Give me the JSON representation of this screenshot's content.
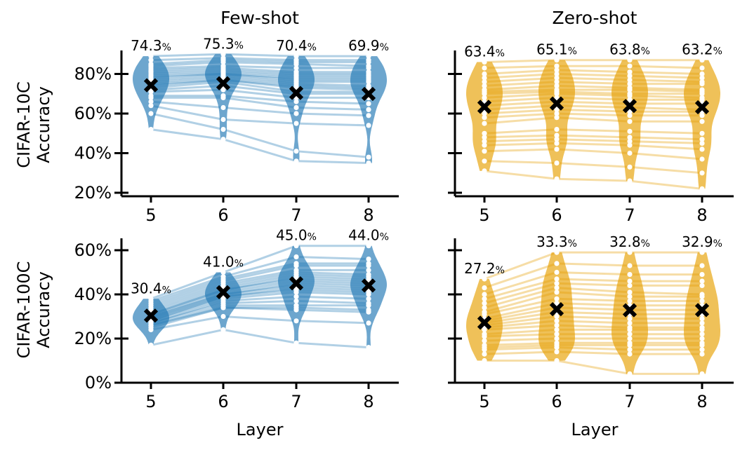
{
  "chart_data": {
    "type": "violin",
    "columns": [
      "Few-shot",
      "Zero-shot"
    ],
    "rows": [
      "CIFAR-10C\nAccuracy",
      "CIFAR-100C\nAccuracy"
    ],
    "xlabel": "Layer",
    "layers": [
      "5",
      "6",
      "7",
      "8"
    ],
    "colors": {
      "few_shot": "#1f77b4",
      "zero_shot": "#e69f00"
    },
    "panels": [
      {
        "row": "CIFAR-10C",
        "column": "Few-shot",
        "ylim": [
          0.19,
          0.92
        ],
        "yticks": [
          0.2,
          0.4,
          0.6,
          0.8
        ],
        "ytick_labels": [
          "20%",
          "40%",
          "60%",
          "80%"
        ],
        "mean_labels": [
          "74.3",
          "75.3",
          "70.4",
          "69.9"
        ],
        "mean_values": [
          0.743,
          0.753,
          0.704,
          0.699
        ],
        "traces": [
          [
            0.89,
            0.9,
            0.89,
            0.89
          ],
          [
            0.87,
            0.88,
            0.87,
            0.87
          ],
          [
            0.85,
            0.87,
            0.86,
            0.86
          ],
          [
            0.84,
            0.86,
            0.85,
            0.84
          ],
          [
            0.83,
            0.84,
            0.83,
            0.83
          ],
          [
            0.82,
            0.83,
            0.81,
            0.81
          ],
          [
            0.81,
            0.82,
            0.8,
            0.8
          ],
          [
            0.8,
            0.81,
            0.79,
            0.79
          ],
          [
            0.79,
            0.8,
            0.78,
            0.78
          ],
          [
            0.78,
            0.8,
            0.77,
            0.77
          ],
          [
            0.77,
            0.79,
            0.76,
            0.76
          ],
          [
            0.76,
            0.78,
            0.75,
            0.74
          ],
          [
            0.75,
            0.77,
            0.74,
            0.73
          ],
          [
            0.74,
            0.77,
            0.73,
            0.72
          ],
          [
            0.73,
            0.76,
            0.71,
            0.71
          ],
          [
            0.72,
            0.74,
            0.7,
            0.7
          ],
          [
            0.71,
            0.72,
            0.68,
            0.68
          ],
          [
            0.69,
            0.69,
            0.66,
            0.65
          ],
          [
            0.68,
            0.68,
            0.63,
            0.62
          ],
          [
            0.66,
            0.63,
            0.6,
            0.59
          ],
          [
            0.64,
            0.57,
            0.55,
            0.54
          ],
          [
            0.6,
            0.52,
            0.41,
            0.38
          ],
          [
            0.52,
            0.47,
            0.36,
            0.35
          ]
        ]
      },
      {
        "row": "CIFAR-10C",
        "column": "Zero-shot",
        "ylim": [
          0.19,
          0.92
        ],
        "yticks": [
          0.2,
          0.4,
          0.6,
          0.8
        ],
        "ytick_labels": [
          "20%",
          "40%",
          "60%",
          "80%"
        ],
        "mean_labels": [
          "63.4",
          "65.1",
          "63.8",
          "63.2"
        ],
        "mean_values": [
          0.634,
          0.651,
          0.638,
          0.632
        ],
        "traces": [
          [
            0.86,
            0.87,
            0.87,
            0.87
          ],
          [
            0.83,
            0.84,
            0.84,
            0.83
          ],
          [
            0.8,
            0.82,
            0.81,
            0.8
          ],
          [
            0.78,
            0.8,
            0.79,
            0.78
          ],
          [
            0.76,
            0.78,
            0.77,
            0.76
          ],
          [
            0.74,
            0.76,
            0.75,
            0.75
          ],
          [
            0.72,
            0.74,
            0.73,
            0.72
          ],
          [
            0.71,
            0.72,
            0.72,
            0.71
          ],
          [
            0.7,
            0.71,
            0.7,
            0.7
          ],
          [
            0.68,
            0.7,
            0.69,
            0.68
          ],
          [
            0.66,
            0.68,
            0.67,
            0.67
          ],
          [
            0.64,
            0.66,
            0.65,
            0.65
          ],
          [
            0.62,
            0.64,
            0.63,
            0.62
          ],
          [
            0.6,
            0.62,
            0.61,
            0.61
          ],
          [
            0.58,
            0.6,
            0.59,
            0.59
          ],
          [
            0.55,
            0.58,
            0.56,
            0.56
          ],
          [
            0.5,
            0.52,
            0.51,
            0.5
          ],
          [
            0.48,
            0.49,
            0.48,
            0.47
          ],
          [
            0.46,
            0.47,
            0.46,
            0.45
          ],
          [
            0.44,
            0.45,
            0.44,
            0.42
          ],
          [
            0.41,
            0.42,
            0.4,
            0.37
          ],
          [
            0.36,
            0.35,
            0.33,
            0.3
          ],
          [
            0.31,
            0.27,
            0.26,
            0.22
          ]
        ]
      },
      {
        "row": "CIFAR-100C",
        "column": "Few-shot",
        "ylim": [
          0.0,
          0.655
        ],
        "yticks": [
          0.0,
          0.2,
          0.4,
          0.6
        ],
        "ytick_labels": [
          "0%",
          "20%",
          "40%",
          "60%"
        ],
        "mean_labels": [
          "30.4",
          "41.0",
          "45.0",
          "44.0"
        ],
        "mean_values": [
          0.304,
          0.41,
          0.45,
          0.44
        ],
        "traces": [
          [
            0.38,
            0.5,
            0.62,
            0.62
          ],
          [
            0.37,
            0.48,
            0.57,
            0.56
          ],
          [
            0.36,
            0.47,
            0.54,
            0.54
          ],
          [
            0.35,
            0.46,
            0.53,
            0.53
          ],
          [
            0.34,
            0.45,
            0.51,
            0.51
          ],
          [
            0.33,
            0.44,
            0.5,
            0.49
          ],
          [
            0.32,
            0.43,
            0.49,
            0.48
          ],
          [
            0.31,
            0.42,
            0.48,
            0.47
          ],
          [
            0.31,
            0.42,
            0.47,
            0.46
          ],
          [
            0.3,
            0.41,
            0.46,
            0.45
          ],
          [
            0.3,
            0.4,
            0.45,
            0.44
          ],
          [
            0.29,
            0.4,
            0.44,
            0.43
          ],
          [
            0.29,
            0.39,
            0.43,
            0.42
          ],
          [
            0.28,
            0.39,
            0.42,
            0.41
          ],
          [
            0.28,
            0.38,
            0.41,
            0.4
          ],
          [
            0.27,
            0.37,
            0.39,
            0.38
          ],
          [
            0.27,
            0.36,
            0.37,
            0.36
          ],
          [
            0.26,
            0.35,
            0.35,
            0.35
          ],
          [
            0.26,
            0.34,
            0.34,
            0.33
          ],
          [
            0.25,
            0.34,
            0.33,
            0.32
          ],
          [
            0.24,
            0.3,
            0.28,
            0.27
          ],
          [
            0.17,
            0.24,
            0.18,
            0.16
          ]
        ]
      },
      {
        "row": "CIFAR-100C",
        "column": "Zero-shot",
        "ylim": [
          0.0,
          0.655
        ],
        "yticks": [
          0.0,
          0.2,
          0.4,
          0.6
        ],
        "ytick_labels": [
          "0%",
          "20%",
          "40%",
          "60%"
        ],
        "mean_labels": [
          "27.2",
          "33.3",
          "32.8",
          "32.9"
        ],
        "mean_values": [
          0.272,
          0.333,
          0.328,
          0.329
        ],
        "traces": [
          [
            0.47,
            0.59,
            0.59,
            0.59
          ],
          [
            0.43,
            0.54,
            0.53,
            0.53
          ],
          [
            0.4,
            0.5,
            0.49,
            0.49
          ],
          [
            0.38,
            0.47,
            0.46,
            0.46
          ],
          [
            0.36,
            0.45,
            0.44,
            0.44
          ],
          [
            0.34,
            0.43,
            0.41,
            0.4
          ],
          [
            0.32,
            0.41,
            0.39,
            0.39
          ],
          [
            0.31,
            0.38,
            0.37,
            0.37
          ],
          [
            0.29,
            0.36,
            0.35,
            0.35
          ],
          [
            0.28,
            0.34,
            0.33,
            0.33
          ],
          [
            0.27,
            0.32,
            0.31,
            0.31
          ],
          [
            0.26,
            0.3,
            0.29,
            0.29
          ],
          [
            0.25,
            0.28,
            0.27,
            0.27
          ],
          [
            0.24,
            0.26,
            0.25,
            0.25
          ],
          [
            0.22,
            0.24,
            0.24,
            0.24
          ],
          [
            0.21,
            0.22,
            0.22,
            0.22
          ],
          [
            0.19,
            0.2,
            0.2,
            0.2
          ],
          [
            0.17,
            0.18,
            0.18,
            0.18
          ],
          [
            0.16,
            0.17,
            0.17,
            0.17
          ],
          [
            0.15,
            0.16,
            0.15,
            0.15
          ],
          [
            0.13,
            0.14,
            0.13,
            0.13
          ],
          [
            0.1,
            0.1,
            0.04,
            0.04
          ]
        ]
      }
    ]
  }
}
